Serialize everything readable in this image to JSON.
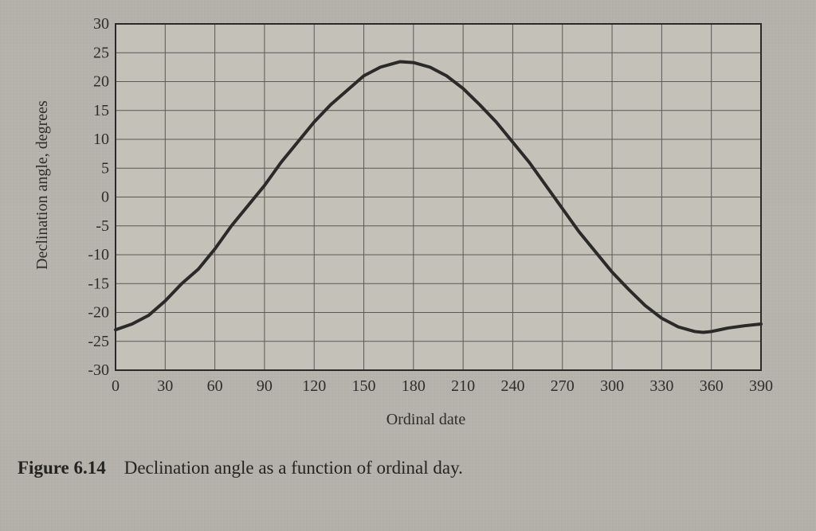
{
  "figure": {
    "caption_label": "Figure 6.14",
    "caption_text": "Declination angle as a function of ordinal day.",
    "chart": {
      "type": "line",
      "background_color": "#c4c1b9",
      "plot_background": "#c4c1b9",
      "grid_color": "#5a5955",
      "grid_width": 1,
      "axis_color": "#2a2a28",
      "axis_width": 2,
      "curve_color": "#2a2a28",
      "curve_width": 4,
      "xlabel": "Ordinal date",
      "ylabel": "Declination angle, degrees",
      "label_fontsize": 20,
      "tick_fontsize": 20,
      "xlim": [
        0,
        390
      ],
      "ylim": [
        -30,
        30
      ],
      "xtick_step": 30,
      "ytick_step": 5,
      "xticks": [
        0,
        30,
        60,
        90,
        120,
        150,
        180,
        210,
        240,
        270,
        300,
        330,
        360,
        390
      ],
      "yticks": [
        -30,
        -25,
        -20,
        -15,
        -10,
        -5,
        0,
        5,
        10,
        15,
        20,
        25,
        30
      ],
      "series": [
        {
          "name": "declination",
          "color": "#2a2a28",
          "line_width": 4,
          "x": [
            0,
            10,
            20,
            30,
            40,
            50,
            60,
            70,
            80,
            90,
            100,
            110,
            120,
            130,
            140,
            150,
            160,
            170,
            172,
            180,
            190,
            200,
            210,
            220,
            230,
            240,
            250,
            260,
            265,
            270,
            280,
            290,
            300,
            310,
            320,
            330,
            340,
            350,
            355,
            360,
            365,
            370,
            380,
            390
          ],
          "y": [
            -23.0,
            -22.0,
            -20.5,
            -18.0,
            -15.0,
            -12.5,
            -9.0,
            -5.0,
            -1.5,
            2.0,
            6.0,
            9.5,
            13.0,
            16.0,
            18.5,
            21.0,
            22.5,
            23.3,
            23.45,
            23.3,
            22.5,
            21.0,
            18.8,
            16.0,
            13.0,
            9.5,
            6.0,
            2.0,
            0.0,
            -2.0,
            -6.0,
            -9.5,
            -13.0,
            -16.0,
            -18.8,
            -21.0,
            -22.5,
            -23.3,
            -23.45,
            -23.3,
            -23.0,
            -22.7,
            -22.3,
            -22.0
          ]
        }
      ]
    }
  }
}
